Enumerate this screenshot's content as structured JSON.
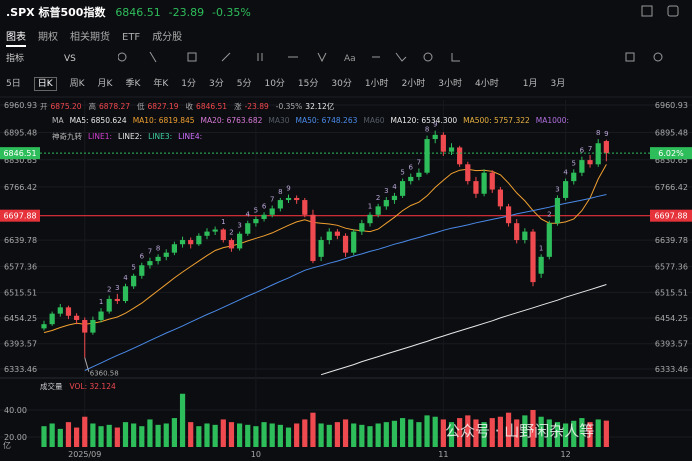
{
  "header": {
    "symbol": ".SPX",
    "name": "标普500指数",
    "price": "6846.51",
    "change": "-23.89",
    "pct": "-0.35%"
  },
  "tabs": [
    "图表",
    "期权",
    "相关期货",
    "ETF",
    "成分股"
  ],
  "toolbar": [
    "指标",
    "VS"
  ],
  "periods": [
    "5日",
    "日K",
    "周K",
    "月K",
    "季K",
    "年K",
    "1分",
    "3分",
    "5分",
    "10分",
    "15分",
    "30分",
    "1小时",
    "2小时",
    "3小时",
    "4小时",
    "1月",
    "3月"
  ],
  "info": [
    {
      "label": "开",
      "value": "6875.20",
      "color": "#f0474c"
    },
    {
      "label": "高",
      "value": "6878.27",
      "color": "#f0474c"
    },
    {
      "label": "低",
      "value": "6827.19",
      "color": "#f0474c"
    },
    {
      "label": "收",
      "value": "6846.51",
      "color": "#f0474c"
    },
    {
      "label": "涨",
      "value": "-23.89",
      "color": "#f0474c"
    },
    {
      "label": "-0.35%",
      "value": "32.12亿",
      "color": "#e8e8e8"
    }
  ],
  "ma_legend": [
    {
      "text": "MA",
      "color": "#bbbbbb"
    },
    {
      "text": "MA5: 6850.624",
      "color": "#e8e8e8"
    },
    {
      "text": "MA10: 6819.845",
      "color": "#f0a030"
    },
    {
      "text": "MA20: 6763.682",
      "color": "#d77ad6"
    },
    {
      "text": "MA30",
      "color": "#555b66"
    },
    {
      "text": "MA50: 6748.263",
      "color": "#4a8ae8"
    },
    {
      "text": "MA60",
      "color": "#555b66"
    },
    {
      "text": "MA120: 6534.300",
      "color": "#e8e8e8"
    },
    {
      "text": "MA500: 5757.322",
      "color": "#e8b040"
    },
    {
      "text": "MA1000:",
      "color": "#b070e0"
    }
  ],
  "nine_legend": [
    {
      "text": "神奇九转",
      "color": "#bbbbbb"
    },
    {
      "text": "LINE1:",
      "color": "#d040d0"
    },
    {
      "text": "LINE2:",
      "color": "#e8e8e8"
    },
    {
      "text": "LINE3:",
      "color": "#40d0a0"
    },
    {
      "text": "LINE4:",
      "color": "#d070ff"
    }
  ],
  "volume_legend": [
    "成交量",
    "VOL: 32.124"
  ],
  "watermark": "公众号 · 山野闲杂人等",
  "chart_data": {
    "type": "candlestick",
    "up_color": "#2ebd5b",
    "down_color": "#ef4a4f",
    "ylim": [
      6319.2,
      6972.8
    ],
    "yticks": [
      6960.93,
      6895.48,
      6830.65,
      6766.42,
      6639.78,
      6577.36,
      6515.51,
      6454.25,
      6393.57,
      6333.46
    ],
    "alert_line": 6697.88,
    "change_label": "6.02%",
    "categories": [
      null,
      null,
      null,
      null,
      null,
      "2025/09",
      null,
      null,
      null,
      null,
      null,
      null,
      null,
      null,
      null,
      null,
      null,
      null,
      null,
      null,
      null,
      null,
      null,
      null,
      null,
      null,
      "10",
      null,
      null,
      null,
      null,
      null,
      null,
      null,
      null,
      null,
      null,
      null,
      null,
      null,
      null,
      null,
      null,
      null,
      null,
      null,
      null,
      null,
      null,
      "11",
      null,
      null,
      null,
      null,
      null,
      null,
      null,
      null,
      null,
      null,
      null,
      null,
      null,
      null,
      "12",
      null,
      null,
      null,
      null,
      null
    ],
    "candles": [
      [
        6430,
        6448,
        6425,
        6440
      ],
      [
        6440,
        6470,
        6436,
        6465
      ],
      [
        6465,
        6488,
        6458,
        6480
      ],
      [
        6480,
        6484,
        6452,
        6460
      ],
      [
        6460,
        6466,
        6440,
        6450
      ],
      [
        6450,
        6456,
        6360.58,
        6420
      ],
      [
        6420,
        6458,
        6415,
        6450
      ],
      [
        6450,
        6478,
        6444,
        6470
      ],
      [
        6470,
        6508,
        6465,
        6500
      ],
      [
        6500,
        6512,
        6488,
        6495
      ],
      [
        6495,
        6536,
        6490,
        6530
      ],
      [
        6530,
        6560,
        6524,
        6555
      ],
      [
        6555,
        6586,
        6548,
        6580
      ],
      [
        6580,
        6598,
        6572,
        6590
      ],
      [
        6590,
        6606,
        6582,
        6600
      ],
      [
        6600,
        6618,
        6592,
        6610
      ],
      [
        6610,
        6636,
        6604,
        6630
      ],
      [
        6630,
        6648,
        6622,
        6640
      ],
      [
        6640,
        6646,
        6620,
        6630
      ],
      [
        6630,
        6656,
        6626,
        6650
      ],
      [
        6650,
        6668,
        6642,
        6660
      ],
      [
        6660,
        6672,
        6652,
        6665
      ],
      [
        6665,
        6668,
        6634,
        6640
      ],
      [
        6640,
        6644,
        6612,
        6620
      ],
      [
        6620,
        6660,
        6615,
        6655
      ],
      [
        6655,
        6686,
        6650,
        6680
      ],
      [
        6680,
        6696,
        6672,
        6690
      ],
      [
        6690,
        6706,
        6684,
        6700
      ],
      [
        6700,
        6722,
        6694,
        6715
      ],
      [
        6715,
        6740,
        6708,
        6735
      ],
      [
        6735,
        6748,
        6728,
        6740
      ],
      [
        6740,
        6746,
        6726,
        6735
      ],
      [
        6735,
        6740,
        6694,
        6700
      ],
      [
        6700,
        6712,
        6585,
        6590
      ],
      [
        6600,
        6648,
        6590,
        6640
      ],
      [
        6640,
        6668,
        6630,
        6660
      ],
      [
        6660,
        6666,
        6642,
        6650
      ],
      [
        6650,
        6656,
        6600,
        6610
      ],
      [
        6610,
        6666,
        6604,
        6660
      ],
      [
        6660,
        6688,
        6652,
        6680
      ],
      [
        6680,
        6706,
        6672,
        6700
      ],
      [
        6700,
        6726,
        6694,
        6720
      ],
      [
        6720,
        6742,
        6712,
        6735
      ],
      [
        6735,
        6752,
        6726,
        6745
      ],
      [
        6745,
        6786,
        6740,
        6780
      ],
      [
        6780,
        6798,
        6772,
        6790
      ],
      [
        6790,
        6810,
        6782,
        6800
      ],
      [
        6800,
        6888,
        6796,
        6880
      ],
      [
        6880,
        6900,
        6870,
        6890
      ],
      [
        6890,
        6896,
        6840,
        6850
      ],
      [
        6850,
        6870,
        6842,
        6860
      ],
      [
        6860,
        6864,
        6814,
        6820
      ],
      [
        6820,
        6826,
        6772,
        6780
      ],
      [
        6780,
        6790,
        6740,
        6750
      ],
      [
        6750,
        6808,
        6744,
        6800
      ],
      [
        6800,
        6806,
        6752,
        6760
      ],
      [
        6760,
        6766,
        6712,
        6720
      ],
      [
        6720,
        6726,
        6672,
        6680
      ],
      [
        6680,
        6690,
        6632,
        6640
      ],
      [
        6640,
        6668,
        6632,
        6660
      ],
      [
        6660,
        6666,
        6530,
        6540
      ],
      [
        6560,
        6606,
        6550,
        6600
      ],
      [
        6600,
        6686,
        6594,
        6680
      ],
      [
        6680,
        6746,
        6674,
        6740
      ],
      [
        6740,
        6786,
        6734,
        6780
      ],
      [
        6780,
        6808,
        6772,
        6800
      ],
      [
        6800,
        6838,
        6792,
        6830
      ],
      [
        6830,
        6842,
        6812,
        6820
      ],
      [
        6820,
        6880,
        6814,
        6870
      ],
      [
        6875.2,
        6878.27,
        6827.19,
        6846.51
      ]
    ],
    "nine_turn": [
      null,
      null,
      null,
      null,
      null,
      null,
      null,
      1,
      2,
      3,
      4,
      5,
      6,
      7,
      8,
      null,
      null,
      null,
      null,
      null,
      null,
      null,
      1,
      2,
      3,
      4,
      5,
      6,
      7,
      8,
      9,
      null,
      null,
      null,
      null,
      null,
      null,
      null,
      null,
      null,
      1,
      2,
      3,
      4,
      5,
      6,
      7,
      8,
      9,
      null,
      null,
      null,
      null,
      null,
      null,
      null,
      null,
      null,
      null,
      null,
      null,
      1,
      2,
      3,
      4,
      5,
      6,
      7,
      8,
      9
    ],
    "series": [
      {
        "name": "MA10",
        "color": "#f0a030",
        "values": [
          6420,
          6425,
          6432,
          6438,
          6442,
          6440,
          6442,
          6446,
          6452,
          6457,
          6466,
          6478,
          6490,
          6505,
          6520,
          6535,
          6550,
          6564,
          6577,
          6590,
          6603,
          6615,
          6622,
          6626,
          6631,
          6638,
          6644,
          6650,
          6657,
          6666,
          6675,
          6683,
          6688,
          6682,
          6680,
          6678,
          6675,
          6668,
          6664,
          6662,
          6660,
          6666,
          6680,
          6694,
          6710,
          6722,
          6730,
          6745,
          6765,
          6782,
          6798,
          6806,
          6808,
          6805,
          6806,
          6803,
          6795,
          6775,
          6752,
          6733,
          6710,
          6690,
          6680,
          6680,
          6683,
          6690,
          6710,
          6740,
          6785,
          6819.845
        ]
      },
      {
        "name": "MA50",
        "color": "#4a8ae8",
        "values": [
          null,
          null,
          null,
          null,
          null,
          6330,
          6339,
          6348,
          6357,
          6366,
          6374,
          6383,
          6392,
          6401,
          6410,
          6419,
          6427,
          6436,
          6445,
          6454,
          6463,
          6471,
          6480,
          6489,
          6498,
          6507,
          6515,
          6524,
          6533,
          6542,
          6550,
          6559,
          6568,
          6574,
          6579,
          6585,
          6590,
          6596,
          6602,
          6607,
          6613,
          6618,
          6624,
          6630,
          6635,
          6641,
          6646,
          6652,
          6657,
          6663,
          6668,
          6672,
          6676,
          6681,
          6685,
          6689,
          6693,
          6697,
          6702,
          6706,
          6710,
          6714,
          6718,
          6723,
          6727,
          6731,
          6735,
          6739,
          6744,
          6748.263
        ]
      },
      {
        "name": "MA120",
        "color": "#e8e8e8",
        "values": [
          null,
          null,
          null,
          null,
          null,
          null,
          null,
          null,
          null,
          null,
          null,
          null,
          null,
          null,
          null,
          null,
          null,
          null,
          null,
          null,
          null,
          null,
          null,
          null,
          null,
          null,
          null,
          null,
          null,
          null,
          null,
          null,
          null,
          null,
          6320,
          6326,
          6332,
          6338,
          6344,
          6351,
          6357,
          6363,
          6369,
          6375,
          6381,
          6387,
          6393,
          6399,
          6406,
          6412,
          6418,
          6424,
          6430,
          6436,
          6442,
          6448,
          6455,
          6461,
          6467,
          6473,
          6479,
          6485,
          6491,
          6497,
          6504,
          6510,
          6516,
          6522,
          6528,
          6534.3
        ]
      }
    ],
    "volumes": [
      28,
      30,
      26,
      31,
      27,
      35,
      30,
      28,
      29,
      27,
      31,
      30,
      28,
      33,
      29,
      30,
      34,
      52,
      31,
      28,
      30,
      29,
      33,
      31,
      30,
      29,
      28,
      31,
      30,
      29,
      27,
      30,
      33,
      38,
      30,
      29,
      31,
      33,
      30,
      29,
      28,
      30,
      31,
      32,
      34,
      33,
      31,
      36,
      35,
      33,
      31,
      34,
      36,
      33,
      31,
      34,
      35,
      38,
      33,
      36,
      40,
      35,
      33,
      31,
      30,
      32,
      34,
      31,
      33,
      32.124
    ],
    "volume_ylim": [
      12.6,
      53.3
    ],
    "volume_ticks": [
      {
        "value": 40,
        "label": "40.00"
      },
      {
        "value": 20,
        "label": "20.00"
      }
    ],
    "volume_unit": "亿"
  }
}
